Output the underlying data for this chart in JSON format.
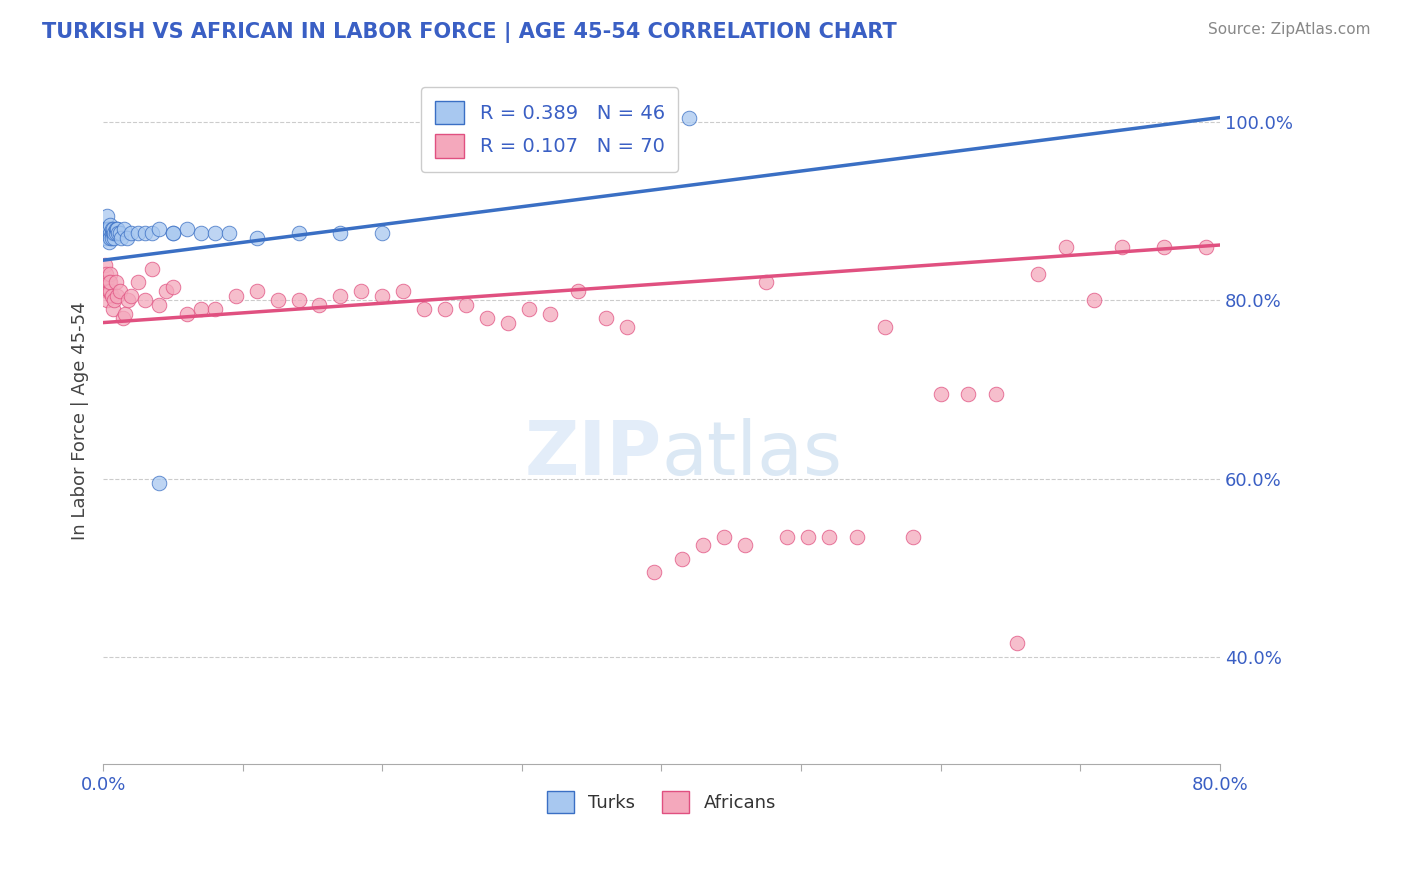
{
  "title": "TURKISH VS AFRICAN IN LABOR FORCE | AGE 45-54 CORRELATION CHART",
  "source": "Source: ZipAtlas.com",
  "ylabel": "In Labor Force | Age 45-54",
  "xlim": [
    0.0,
    0.8
  ],
  "ylim": [
    0.28,
    1.05
  ],
  "xticks": [
    0.0,
    0.1,
    0.2,
    0.3,
    0.4,
    0.5,
    0.6,
    0.7,
    0.8
  ],
  "yticks_right": [
    0.4,
    0.6,
    0.8,
    1.0
  ],
  "ytick_labels_right": [
    "40.0%",
    "60.0%",
    "80.0%",
    "100.0%"
  ],
  "turks_R": 0.389,
  "turks_N": 46,
  "africans_R": 0.107,
  "africans_N": 70,
  "turks_color": "#a8c8f0",
  "africans_color": "#f4a8bc",
  "turks_line_color": "#3a6fc4",
  "africans_line_color": "#e05080",
  "legend_color": "#3a5fc4",
  "title_color": "#3a5fc4",
  "turks_x": [
    0.001,
    0.002,
    0.002,
    0.003,
    0.003,
    0.003,
    0.004,
    0.004,
    0.004,
    0.005,
    0.005,
    0.005,
    0.006,
    0.006,
    0.006,
    0.007,
    0.007,
    0.008,
    0.008,
    0.009,
    0.009,
    0.01,
    0.01,
    0.011,
    0.012,
    0.013,
    0.015,
    0.017,
    0.02,
    0.025,
    0.03,
    0.035,
    0.04,
    0.05,
    0.06,
    0.07,
    0.08,
    0.09,
    0.11,
    0.14,
    0.17,
    0.2,
    0.04,
    0.05,
    0.39,
    0.42
  ],
  "turks_y": [
    0.875,
    0.88,
    0.87,
    0.895,
    0.875,
    0.88,
    0.865,
    0.88,
    0.88,
    0.875,
    0.885,
    0.87,
    0.875,
    0.87,
    0.88,
    0.875,
    0.88,
    0.87,
    0.875,
    0.88,
    0.875,
    0.88,
    0.88,
    0.875,
    0.875,
    0.87,
    0.88,
    0.87,
    0.875,
    0.875,
    0.875,
    0.875,
    0.88,
    0.875,
    0.88,
    0.875,
    0.875,
    0.875,
    0.87,
    0.875,
    0.875,
    0.875,
    0.595,
    0.875,
    1.005,
    1.005
  ],
  "africans_x": [
    0.001,
    0.002,
    0.002,
    0.003,
    0.003,
    0.004,
    0.004,
    0.005,
    0.005,
    0.005,
    0.006,
    0.007,
    0.008,
    0.009,
    0.01,
    0.012,
    0.014,
    0.016,
    0.018,
    0.02,
    0.025,
    0.03,
    0.035,
    0.04,
    0.045,
    0.05,
    0.06,
    0.07,
    0.08,
    0.095,
    0.11,
    0.125,
    0.14,
    0.155,
    0.17,
    0.185,
    0.2,
    0.215,
    0.23,
    0.245,
    0.26,
    0.275,
    0.29,
    0.305,
    0.32,
    0.34,
    0.36,
    0.375,
    0.395,
    0.415,
    0.43,
    0.445,
    0.46,
    0.475,
    0.49,
    0.505,
    0.52,
    0.54,
    0.56,
    0.58,
    0.6,
    0.62,
    0.64,
    0.655,
    0.67,
    0.69,
    0.71,
    0.73,
    0.76,
    0.79
  ],
  "africans_y": [
    0.84,
    0.82,
    0.83,
    0.81,
    0.8,
    0.81,
    0.82,
    0.83,
    0.81,
    0.82,
    0.805,
    0.79,
    0.8,
    0.82,
    0.805,
    0.81,
    0.78,
    0.785,
    0.8,
    0.805,
    0.82,
    0.8,
    0.835,
    0.795,
    0.81,
    0.815,
    0.785,
    0.79,
    0.79,
    0.805,
    0.81,
    0.8,
    0.8,
    0.795,
    0.805,
    0.81,
    0.805,
    0.81,
    0.79,
    0.79,
    0.795,
    0.78,
    0.775,
    0.79,
    0.785,
    0.81,
    0.78,
    0.77,
    0.495,
    0.51,
    0.525,
    0.535,
    0.525,
    0.82,
    0.535,
    0.535,
    0.535,
    0.535,
    0.77,
    0.535,
    0.695,
    0.695,
    0.695,
    0.415,
    0.83,
    0.86,
    0.8,
    0.86,
    0.86,
    0.86
  ],
  "turks_trend_x": [
    0.0,
    0.8
  ],
  "turks_trend_y": [
    0.845,
    1.005
  ],
  "africans_trend_x": [
    0.0,
    0.8
  ],
  "africans_trend_y": [
    0.775,
    0.862
  ]
}
